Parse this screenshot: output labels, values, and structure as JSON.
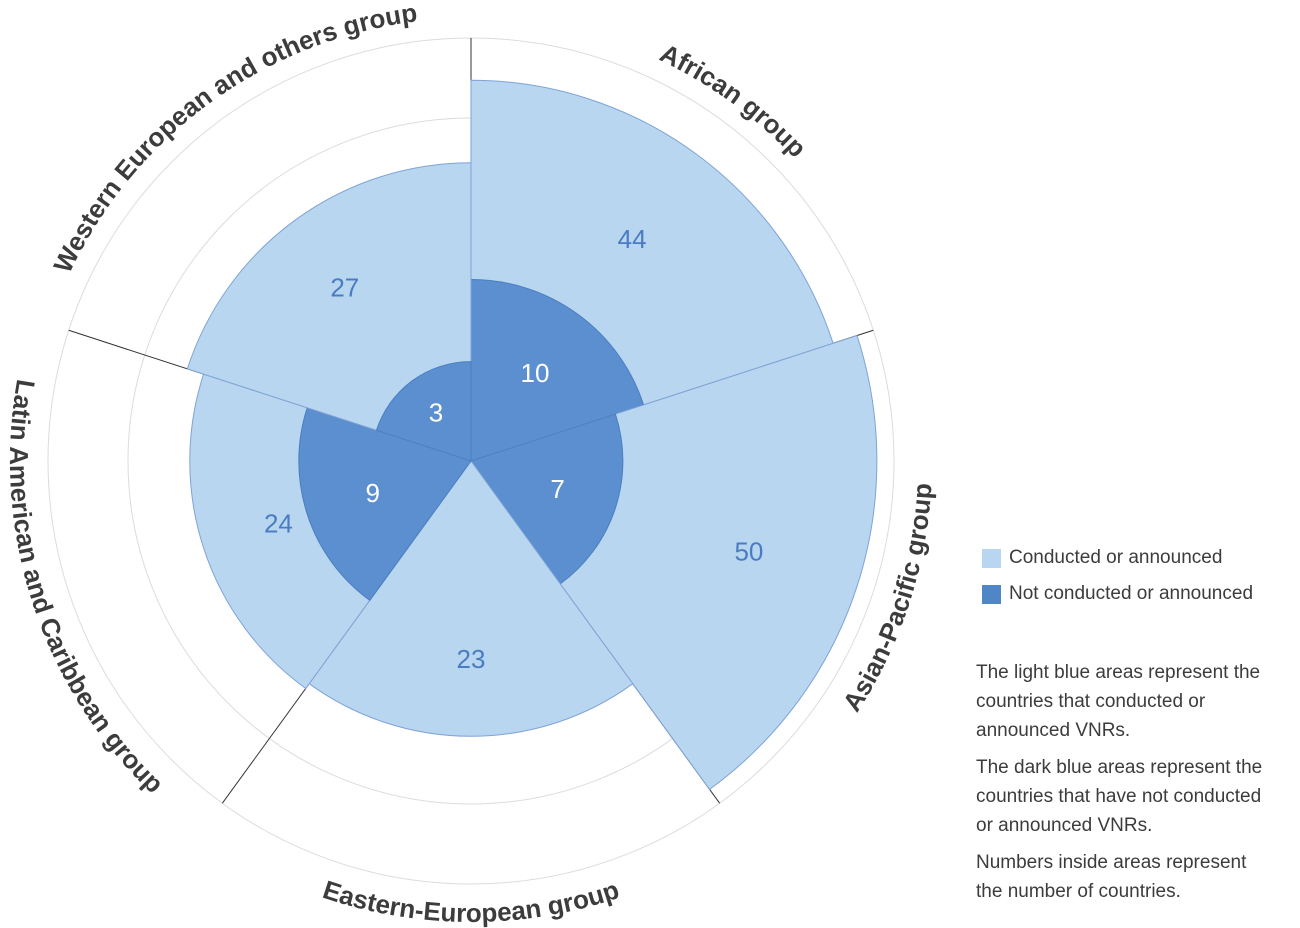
{
  "chart_data": {
    "type": "polar-area",
    "categories": [
      "African group",
      "Asian-Pacific group",
      "Eastern-European group",
      "Latin American and Caribbean group",
      "Western European and others group"
    ],
    "series": [
      {
        "name": "Conducted or announced",
        "values": [
          44,
          50,
          23,
          24,
          27
        ],
        "color": "#b8d6f0"
      },
      {
        "name": "Not conducted or announced",
        "values": [
          10,
          7,
          0,
          9,
          3
        ],
        "color": "#5b8fcf"
      }
    ],
    "value_labels": {
      "conducted": [
        "44",
        "50",
        "23",
        "24",
        "27"
      ],
      "not_conducted": [
        "10",
        "7",
        "",
        "9",
        "3"
      ]
    },
    "grid": true,
    "legend_position": "right"
  },
  "legend": {
    "items": [
      {
        "label": "Conducted or announced",
        "color": "#b8d6f0"
      },
      {
        "label": "Not conducted or announced",
        "color": "#4f86c6"
      }
    ]
  },
  "notes": [
    "The light blue areas represent the countries that conducted or announced VNRs.",
    "The dark blue areas represent the countries that have not conducted or announced VNRs.",
    "Numbers inside areas represent the number of countries."
  ]
}
